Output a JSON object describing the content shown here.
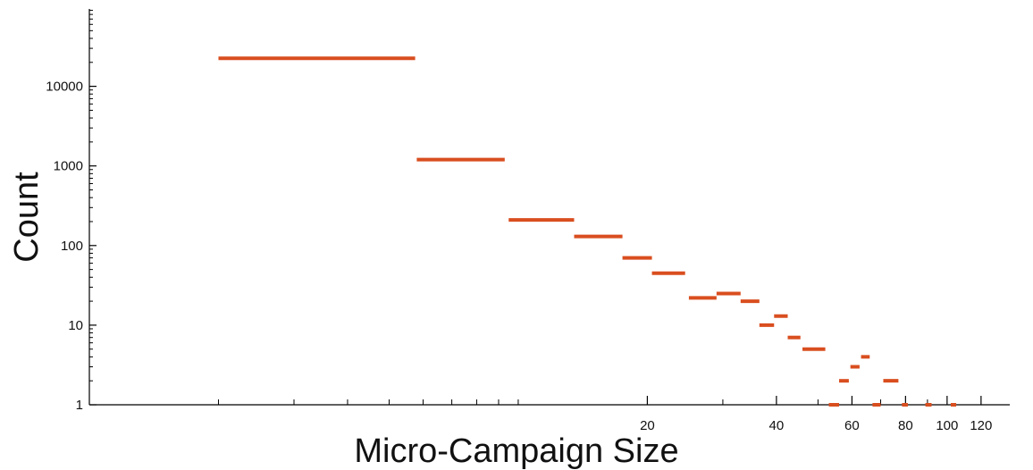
{
  "chart_data": {
    "type": "bar",
    "xlabel": "Micro-Campaign Size",
    "ylabel": "Count",
    "xscale": "log",
    "yscale": "log",
    "xlim": [
      1.0,
      140
    ],
    "ylim": [
      1,
      100000
    ],
    "grid": false,
    "series_color": "#d94e1f",
    "axis_color": "#000000",
    "y_ticks": [
      {
        "value": 1,
        "label": "1"
      },
      {
        "value": 10,
        "label": "10"
      },
      {
        "value": 100,
        "label": "100"
      },
      {
        "value": 1000,
        "label": "1000"
      },
      {
        "value": 10000,
        "label": "10000"
      }
    ],
    "x_ticks": [
      {
        "value": 20,
        "label": "20"
      },
      {
        "value": 40,
        "label": "40"
      },
      {
        "value": 60,
        "label": "60"
      },
      {
        "value": 80,
        "label": "80"
      },
      {
        "value": 100,
        "label": "100"
      },
      {
        "value": 120,
        "label": "120"
      }
    ],
    "points": [
      {
        "x0": 2,
        "x1": 5.75,
        "y": 22500
      },
      {
        "x0": 5.8,
        "x1": 9.3,
        "y": 1200
      },
      {
        "x0": 9.5,
        "x1": 13.5,
        "y": 210
      },
      {
        "x0": 13.5,
        "x1": 17.5,
        "y": 130
      },
      {
        "x0": 17.5,
        "x1": 20.5,
        "y": 70
      },
      {
        "x0": 20.5,
        "x1": 24.5,
        "y": 45
      },
      {
        "x0": 25,
        "x1": 29,
        "y": 22
      },
      {
        "x0": 29,
        "x1": 33,
        "y": 25
      },
      {
        "x0": 33,
        "x1": 36.5,
        "y": 20
      },
      {
        "x0": 36.5,
        "x1": 39.5,
        "y": 10
      },
      {
        "x0": 39.5,
        "x1": 42.5,
        "y": 13
      },
      {
        "x0": 42.5,
        "x1": 45.5,
        "y": 7
      },
      {
        "x0": 46,
        "x1": 52,
        "y": 5
      },
      {
        "x0": 53,
        "x1": 56,
        "y": 1
      },
      {
        "x0": 56,
        "x1": 59,
        "y": 2
      },
      {
        "x0": 59.5,
        "x1": 62.5,
        "y": 3
      },
      {
        "x0": 63,
        "x1": 66,
        "y": 4
      },
      {
        "x0": 67,
        "x1": 70,
        "y": 1
      },
      {
        "x0": 71,
        "x1": 77,
        "y": 2
      },
      {
        "x0": 78.5,
        "x1": 81,
        "y": 1
      },
      {
        "x0": 89,
        "x1": 92,
        "y": 1
      },
      {
        "x0": 102,
        "x1": 105,
        "y": 1
      }
    ]
  }
}
